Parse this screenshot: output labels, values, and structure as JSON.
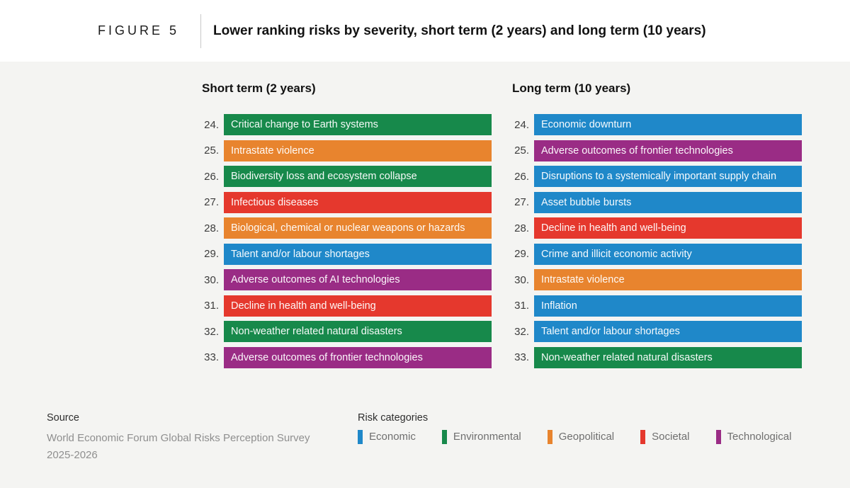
{
  "header": {
    "figure_label": "FIGURE 5",
    "title": "Lower ranking risks by severity, short term (2 years) and long term (10 years)"
  },
  "chart_data": {
    "type": "table",
    "title": "Lower ranking risks by severity, short term (2 years) and long term (10 years)",
    "legend_position": "bottom",
    "columns": [
      {
        "title": "Short term (2 years)",
        "rows": [
          {
            "rank": "24.",
            "risk": "Critical change to Earth systems",
            "category": "Environmental"
          },
          {
            "rank": "25.",
            "risk": "Intrastate violence",
            "category": "Geopolitical"
          },
          {
            "rank": "26.",
            "risk": "Biodiversity loss and ecosystem collapse",
            "category": "Environmental"
          },
          {
            "rank": "27.",
            "risk": "Infectious diseases",
            "category": "Societal"
          },
          {
            "rank": "28.",
            "risk": "Biological, chemical or nuclear weapons or hazards",
            "category": "Geopolitical"
          },
          {
            "rank": "29.",
            "risk": "Talent and/or labour shortages",
            "category": "Economic"
          },
          {
            "rank": "30.",
            "risk": "Adverse outcomes of AI technologies",
            "category": "Technological"
          },
          {
            "rank": "31.",
            "risk": "Decline in health and well-being",
            "category": "Societal"
          },
          {
            "rank": "32.",
            "risk": "Non-weather related natural disasters",
            "category": "Environmental"
          },
          {
            "rank": "33.",
            "risk": "Adverse outcomes of frontier technologies",
            "category": "Technological"
          }
        ]
      },
      {
        "title": "Long term (10 years)",
        "rows": [
          {
            "rank": "24.",
            "risk": "Economic downturn",
            "category": "Economic"
          },
          {
            "rank": "25.",
            "risk": "Adverse outcomes of frontier technologies",
            "category": "Technological"
          },
          {
            "rank": "26.",
            "risk": "Disruptions to a systemically important supply chain",
            "category": "Economic"
          },
          {
            "rank": "27.",
            "risk": "Asset bubble bursts",
            "category": "Economic"
          },
          {
            "rank": "28.",
            "risk": "Decline in health and well-being",
            "category": "Societal"
          },
          {
            "rank": "29.",
            "risk": "Crime and illicit economic activity",
            "category": "Economic"
          },
          {
            "rank": "30.",
            "risk": "Intrastate violence",
            "category": "Geopolitical"
          },
          {
            "rank": "31.",
            "risk": "Inflation",
            "category": "Economic"
          },
          {
            "rank": "32.",
            "risk": "Talent and/or labour shortages",
            "category": "Economic"
          },
          {
            "rank": "33.",
            "risk": "Non-weather related natural disasters",
            "category": "Environmental"
          }
        ]
      }
    ]
  },
  "footer": {
    "source_label": "Source",
    "source_text": "World Economic Forum Global Risks Perception Survey 2025-2026",
    "legend_title": "Risk categories",
    "legend": [
      "Economic",
      "Environmental",
      "Geopolitical",
      "Societal",
      "Technological"
    ]
  },
  "colors": {
    "Economic": "#1f88c9",
    "Environmental": "#17894b",
    "Geopolitical": "#e8842e",
    "Societal": "#e5382d",
    "Technological": "#9a2c85",
    "background": "#f4f4f2"
  }
}
